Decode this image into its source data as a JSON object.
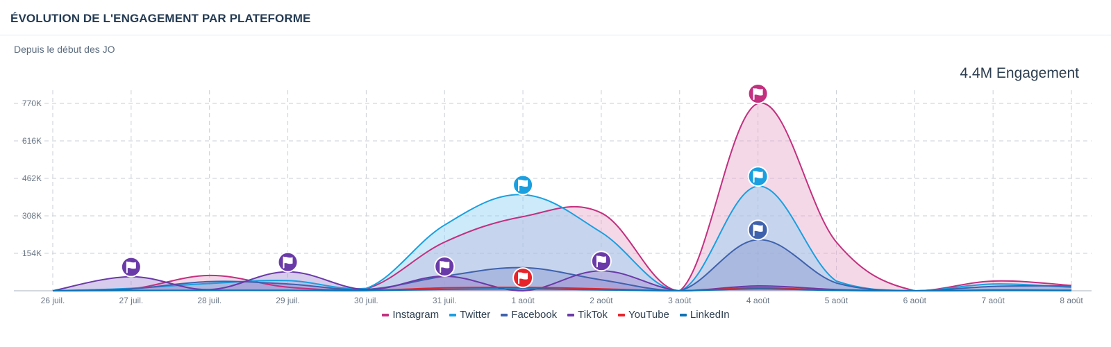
{
  "header": {
    "title": "ÉVOLUTION DE L'ENGAGEMENT PAR PLATEFORME",
    "subtitle": "Depuis le début des JO"
  },
  "kpi": {
    "value": "4.4M Engagement"
  },
  "icons": {
    "marker": "flag-icon"
  },
  "chart_data": {
    "type": "area",
    "title": "ÉVOLUTION DE L'ENGAGEMENT PAR PLATEFORME",
    "subtitle": "Depuis le début des JO",
    "xlabel": "",
    "ylabel": "",
    "categories": [
      "26 juil.",
      "27 juil.",
      "28 juil.",
      "29 juil.",
      "30 juil.",
      "31 juil.",
      "1 août",
      "2 août",
      "3 août",
      "4 août",
      "5 août",
      "6 août",
      "7 août",
      "8 août"
    ],
    "y_ticks": [
      {
        "value": 154000,
        "label": "154K"
      },
      {
        "value": 308000,
        "label": "308K"
      },
      {
        "value": 462000,
        "label": "462K"
      },
      {
        "value": 616000,
        "label": "616K"
      },
      {
        "value": 770000,
        "label": "770K"
      }
    ],
    "ylim": [
      0,
      830000
    ],
    "grid": true,
    "legend_position": "bottom-center",
    "stacked": false,
    "series": [
      {
        "name": "Instagram",
        "color": "#c2307f",
        "fill": "#e7a9c9",
        "opacity": 0.45,
        "draw_order": 1,
        "values": [
          0,
          8000,
          63000,
          15000,
          8000,
          200000,
          305000,
          320000,
          0,
          770000,
          200000,
          0,
          40000,
          22000
        ]
      },
      {
        "name": "Twitter",
        "color": "#1a9fe0",
        "fill": "#8fd0f3",
        "opacity": 0.45,
        "draw_order": 2,
        "values": [
          0,
          10000,
          30000,
          42000,
          10000,
          270000,
          395000,
          240000,
          0,
          430000,
          40000,
          0,
          28000,
          14000
        ]
      },
      {
        "name": "Facebook",
        "color": "#3f62ad",
        "fill": "#8899d0",
        "opacity": 0.45,
        "draw_order": 3,
        "values": [
          0,
          8000,
          38000,
          28000,
          6000,
          60000,
          95000,
          45000,
          0,
          210000,
          32000,
          0,
          18000,
          20000
        ]
      },
      {
        "name": "TikTok",
        "color": "#6a3aa8",
        "fill": "#a78fd3",
        "opacity": 0.45,
        "draw_order": 4,
        "values": [
          0,
          58000,
          5000,
          78000,
          5000,
          60000,
          0,
          82000,
          0,
          20000,
          5000,
          0,
          3000,
          2000
        ]
      },
      {
        "name": "YouTube",
        "color": "#e8232a",
        "fill": "#f2a1a4",
        "opacity": 0.35,
        "draw_order": 5,
        "values": [
          0,
          1500,
          2000,
          2000,
          1000,
          12000,
          14000,
          8000,
          0,
          12000,
          2000,
          0,
          1500,
          1000
        ]
      },
      {
        "name": "LinkedIn",
        "color": "#0e72b5",
        "fill": "#7fb6dc",
        "opacity": 0.35,
        "draw_order": 6,
        "values": [
          0,
          1000,
          1500,
          1500,
          800,
          6000,
          8000,
          4000,
          0,
          8000,
          1500,
          0,
          1000,
          800
        ]
      }
    ],
    "flag_markers": [
      {
        "series": "TikTok",
        "date": "27 juil."
      },
      {
        "series": "TikTok",
        "date": "29 juil."
      },
      {
        "series": "TikTok",
        "date": "31 juil."
      },
      {
        "series": "Twitter",
        "date": "1 août"
      },
      {
        "series": "YouTube",
        "date": "1 août"
      },
      {
        "series": "TikTok",
        "date": "2 août"
      },
      {
        "series": "Instagram",
        "date": "4 août"
      },
      {
        "series": "Twitter",
        "date": "4 août"
      },
      {
        "series": "Facebook",
        "date": "4 août"
      }
    ]
  }
}
